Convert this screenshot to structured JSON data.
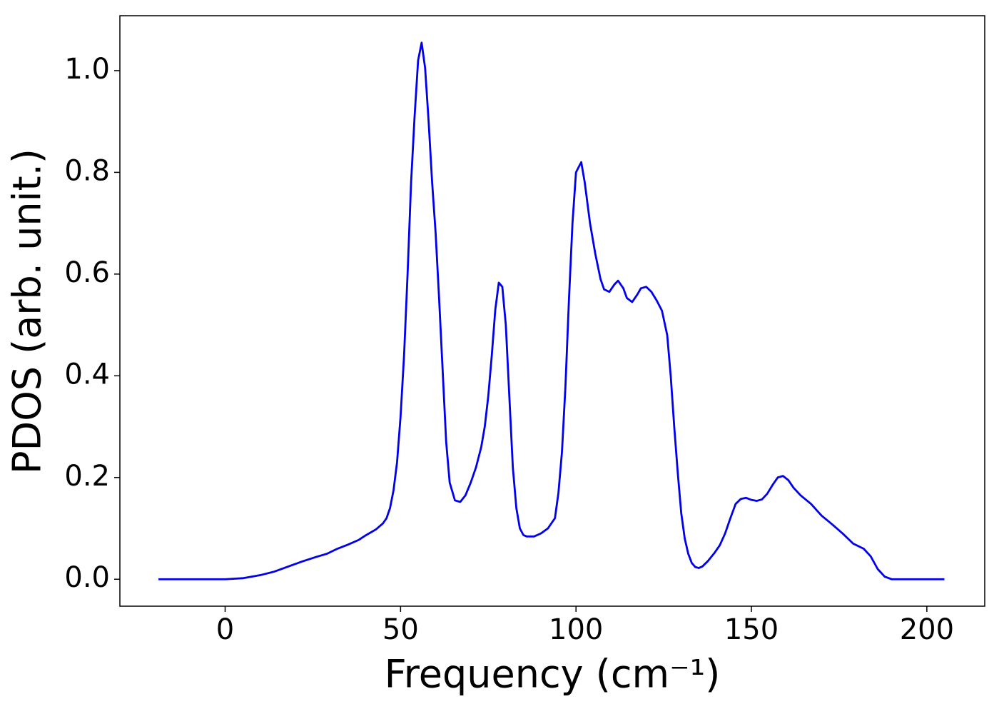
{
  "chart_data": {
    "type": "line",
    "xlabel": "Frequency (cm⁻¹)",
    "ylabel": "PDOS (arb. unit.)",
    "xlim": [
      -30,
      216.5
    ],
    "ylim": [
      -0.053,
      1.108
    ],
    "xticks": [
      0,
      50,
      100,
      150,
      200
    ],
    "yticks": [
      {
        "value": 0,
        "label": "0.0"
      },
      0.2,
      0.4,
      0.6,
      0.8,
      {
        "value": 1,
        "label": "1.0"
      }
    ],
    "grid": false,
    "series": [
      {
        "color": "#0000ee",
        "x": [
          -19,
          0,
          5,
          10,
          14,
          18,
          22,
          26,
          29,
          32,
          35,
          38,
          40,
          43,
          45,
          46,
          47,
          48,
          49,
          50,
          51,
          52,
          53,
          54,
          55,
          56,
          57,
          58,
          59,
          60,
          61,
          62,
          63,
          64,
          65.5,
          67,
          68.5,
          70,
          71.5,
          73,
          74,
          75,
          76,
          77,
          78,
          79,
          80,
          81,
          82,
          83,
          84,
          85,
          86,
          88,
          90,
          92,
          93,
          94,
          95,
          96,
          97,
          98,
          99,
          100,
          101.5,
          102.5,
          104,
          105.5,
          107,
          108,
          109.5,
          111,
          112,
          113.5,
          114.5,
          116,
          117.5,
          118.5,
          120,
          121.5,
          123,
          124.5,
          126,
          127,
          128,
          129,
          130,
          131,
          132,
          133,
          134,
          135,
          136,
          137.5,
          139.5,
          141,
          142.5,
          144,
          145.5,
          147,
          148.5,
          150,
          151.5,
          153,
          154.5,
          156,
          157.5,
          159,
          160.5,
          162,
          164,
          167,
          170,
          173,
          176,
          179,
          182,
          184,
          186,
          188,
          190,
          205
        ],
        "values": [
          0,
          0,
          0.002,
          0.008,
          0.015,
          0.025,
          0.035,
          0.044,
          0.05,
          0.06,
          0.068,
          0.077,
          0.086,
          0.098,
          0.11,
          0.12,
          0.14,
          0.175,
          0.23,
          0.32,
          0.44,
          0.6,
          0.78,
          0.91,
          1.02,
          1.055,
          1.005,
          0.9,
          0.78,
          0.68,
          0.55,
          0.41,
          0.27,
          0.19,
          0.155,
          0.152,
          0.165,
          0.19,
          0.22,
          0.26,
          0.3,
          0.36,
          0.44,
          0.53,
          0.583,
          0.575,
          0.5,
          0.36,
          0.22,
          0.14,
          0.1,
          0.087,
          0.084,
          0.084,
          0.09,
          0.1,
          0.11,
          0.12,
          0.17,
          0.25,
          0.38,
          0.55,
          0.7,
          0.8,
          0.82,
          0.78,
          0.7,
          0.64,
          0.59,
          0.57,
          0.565,
          0.58,
          0.587,
          0.572,
          0.553,
          0.545,
          0.56,
          0.572,
          0.575,
          0.565,
          0.548,
          0.528,
          0.48,
          0.4,
          0.3,
          0.21,
          0.13,
          0.08,
          0.05,
          0.032,
          0.024,
          0.022,
          0.025,
          0.035,
          0.052,
          0.067,
          0.09,
          0.12,
          0.148,
          0.158,
          0.16,
          0.156,
          0.154,
          0.157,
          0.168,
          0.185,
          0.2,
          0.203,
          0.195,
          0.18,
          0.165,
          0.148,
          0.125,
          0.108,
          0.09,
          0.07,
          0.06,
          0.045,
          0.02,
          0.005,
          0,
          0
        ]
      }
    ]
  }
}
